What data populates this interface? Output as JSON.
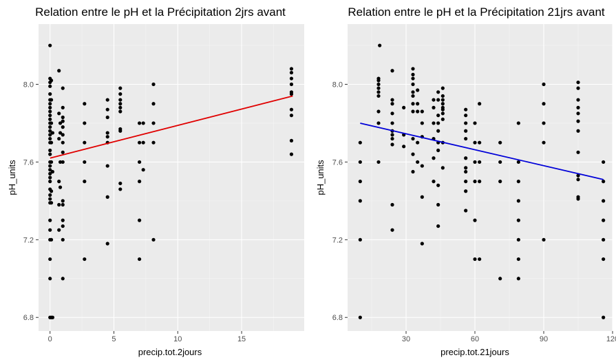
{
  "chart_data": [
    {
      "type": "scatter",
      "title": "Relation entre le pH et la Précipitation 2jrs avant",
      "xlabel": "precip.tot.2jours",
      "ylabel": "pH_units",
      "xlim": [
        -0.9,
        19.9
      ],
      "ylim": [
        6.73,
        8.31
      ],
      "xticks": [
        0,
        5,
        10,
        15
      ],
      "xtick_labels": [
        "0",
        "5",
        "10",
        "15"
      ],
      "yticks": [
        6.8,
        7.2,
        7.6,
        8.0
      ],
      "ytick_labels": [
        "6.8",
        "7.2",
        "7.6",
        "8.0"
      ],
      "grid": true,
      "panel_background": "#ebebeb",
      "point_color": "#000000",
      "trend_line": {
        "color": "#e00000",
        "x": [
          0,
          19
        ],
        "y": [
          7.62,
          7.94
        ]
      },
      "points": [
        [
          0,
          8.2
        ],
        [
          0,
          8.03
        ],
        [
          0,
          8.01
        ],
        [
          0,
          7.99
        ],
        [
          0,
          7.95
        ],
        [
          0,
          7.92
        ],
        [
          0,
          7.9
        ],
        [
          0,
          7.88
        ],
        [
          0,
          7.86
        ],
        [
          0,
          7.84
        ],
        [
          0,
          7.82
        ],
        [
          0,
          7.8
        ],
        [
          0,
          7.78
        ],
        [
          0,
          7.76
        ],
        [
          0,
          7.74
        ],
        [
          0,
          7.72
        ],
        [
          0,
          7.7
        ],
        [
          0,
          7.66
        ],
        [
          0,
          7.64
        ],
        [
          0,
          7.6
        ],
        [
          0,
          7.58
        ],
        [
          0,
          7.56
        ],
        [
          0,
          7.54
        ],
        [
          0,
          7.52
        ],
        [
          0,
          7.5
        ],
        [
          0,
          7.46
        ],
        [
          0,
          7.43
        ],
        [
          0,
          7.41
        ],
        [
          0,
          7.39
        ],
        [
          0,
          7.3
        ],
        [
          0,
          7.25
        ],
        [
          0,
          7.2
        ],
        [
          0,
          7.1
        ],
        [
          0,
          7.0
        ],
        [
          0,
          6.8
        ],
        [
          0.1,
          8.02
        ],
        [
          0.1,
          7.92
        ],
        [
          0.1,
          7.8
        ],
        [
          0.1,
          7.7
        ],
        [
          0.1,
          7.6
        ],
        [
          0.1,
          7.45
        ],
        [
          0.1,
          7.39
        ],
        [
          0.1,
          7.2
        ],
        [
          0.1,
          6.8
        ],
        [
          0.2,
          7.75
        ],
        [
          0.2,
          7.55
        ],
        [
          0.2,
          6.8
        ],
        [
          0.7,
          8.07
        ],
        [
          0.7,
          7.85
        ],
        [
          0.7,
          7.72
        ],
        [
          0.7,
          7.5
        ],
        [
          0.7,
          7.38
        ],
        [
          0.7,
          7.25
        ],
        [
          0.8,
          7.8
        ],
        [
          0.8,
          7.75
        ],
        [
          0.8,
          7.6
        ],
        [
          0.8,
          7.47
        ],
        [
          1.0,
          7.98
        ],
        [
          1.0,
          7.88
        ],
        [
          1.0,
          7.83
        ],
        [
          1.0,
          7.81
        ],
        [
          1.0,
          7.78
        ],
        [
          1.0,
          7.74
        ],
        [
          1.0,
          7.7
        ],
        [
          1.0,
          7.65
        ],
        [
          1.0,
          7.6
        ],
        [
          1.0,
          7.4
        ],
        [
          1.0,
          7.38
        ],
        [
          1.0,
          7.3
        ],
        [
          1.0,
          7.27
        ],
        [
          1.0,
          7.2
        ],
        [
          1.0,
          7.0
        ],
        [
          2.7,
          7.9
        ],
        [
          2.7,
          7.8
        ],
        [
          2.7,
          7.7
        ],
        [
          2.7,
          7.6
        ],
        [
          2.7,
          7.5
        ],
        [
          2.7,
          7.1
        ],
        [
          4.5,
          7.92
        ],
        [
          4.5,
          7.87
        ],
        [
          4.5,
          7.83
        ],
        [
          4.5,
          7.75
        ],
        [
          4.5,
          7.73
        ],
        [
          4.5,
          7.7
        ],
        [
          4.5,
          7.58
        ],
        [
          4.5,
          7.42
        ],
        [
          4.5,
          7.18
        ],
        [
          5.5,
          7.98
        ],
        [
          5.5,
          7.95
        ],
        [
          5.5,
          7.92
        ],
        [
          5.5,
          7.9
        ],
        [
          5.5,
          7.88
        ],
        [
          5.5,
          7.86
        ],
        [
          5.5,
          7.77
        ],
        [
          5.5,
          7.76
        ],
        [
          5.5,
          7.49
        ],
        [
          5.5,
          7.46
        ],
        [
          7.0,
          7.8
        ],
        [
          7.0,
          7.7
        ],
        [
          7.0,
          7.6
        ],
        [
          7.0,
          7.5
        ],
        [
          7.0,
          7.3
        ],
        [
          7.0,
          7.1
        ],
        [
          7.3,
          7.8
        ],
        [
          7.3,
          7.7
        ],
        [
          7.3,
          7.56
        ],
        [
          8.1,
          8.0
        ],
        [
          8.1,
          7.9
        ],
        [
          8.1,
          7.8
        ],
        [
          8.1,
          7.7
        ],
        [
          8.1,
          7.2
        ],
        [
          18.9,
          8.08
        ],
        [
          18.9,
          8.06
        ],
        [
          18.9,
          8.03
        ],
        [
          18.9,
          8.0
        ],
        [
          18.9,
          7.96
        ],
        [
          18.9,
          7.95
        ],
        [
          18.9,
          7.87
        ],
        [
          18.9,
          7.84
        ],
        [
          18.9,
          7.71
        ],
        [
          18.9,
          7.64
        ]
      ]
    },
    {
      "type": "scatter",
      "title": "Relation entre le pH et la Précipitation 21jrs avant",
      "xlabel": "precip.tot.21jours",
      "ylabel": "pH_units",
      "xlim": [
        4.5,
        120
      ],
      "ylim": [
        6.73,
        8.31
      ],
      "xticks": [
        30,
        60,
        90,
        120
      ],
      "xtick_labels": [
        "30",
        "60",
        "90",
        "120"
      ],
      "yticks": [
        6.8,
        7.2,
        7.6,
        8.0
      ],
      "ytick_labels": [
        "6.8",
        "7.2",
        "7.6",
        "8.0"
      ],
      "grid": true,
      "panel_background": "#ebebeb",
      "point_color": "#000000",
      "trend_line": {
        "color": "#0000d8",
        "x": [
          10,
          116
        ],
        "y": [
          7.8,
          7.51
        ]
      },
      "points": [
        [
          10,
          7.7
        ],
        [
          10,
          7.6
        ],
        [
          10,
          7.5
        ],
        [
          10,
          7.4
        ],
        [
          10,
          7.2
        ],
        [
          10,
          6.8
        ],
        [
          18,
          7.6
        ],
        [
          18,
          7.8
        ],
        [
          18,
          7.86
        ],
        [
          18,
          7.94
        ],
        [
          18,
          7.96
        ],
        [
          18,
          7.98
        ],
        [
          18,
          8.0
        ],
        [
          18,
          8.02
        ],
        [
          18,
          8.03
        ],
        [
          18.5,
          8.2
        ],
        [
          24,
          8.07
        ],
        [
          24,
          7.92
        ],
        [
          24,
          7.9
        ],
        [
          24,
          7.85
        ],
        [
          24,
          7.8
        ],
        [
          24,
          7.76
        ],
        [
          24,
          7.74
        ],
        [
          24,
          7.72
        ],
        [
          24,
          7.69
        ],
        [
          24,
          7.38
        ],
        [
          24,
          7.25
        ],
        [
          29,
          7.88
        ],
        [
          29,
          7.74
        ],
        [
          29,
          7.68
        ],
        [
          33,
          8.08
        ],
        [
          33,
          8.05
        ],
        [
          33,
          8.03
        ],
        [
          33,
          8.0
        ],
        [
          33,
          7.96
        ],
        [
          33,
          7.94
        ],
        [
          33,
          7.9
        ],
        [
          33,
          7.86
        ],
        [
          33,
          7.72
        ],
        [
          33,
          7.64
        ],
        [
          33,
          7.55
        ],
        [
          35,
          7.97
        ],
        [
          35,
          7.9
        ],
        [
          35,
          7.86
        ],
        [
          35,
          7.7
        ],
        [
          35,
          7.6
        ],
        [
          37,
          7.86
        ],
        [
          37,
          7.8
        ],
        [
          37,
          7.73
        ],
        [
          37,
          7.58
        ],
        [
          37,
          7.42
        ],
        [
          37,
          7.18
        ],
        [
          42,
          7.92
        ],
        [
          42,
          7.88
        ],
        [
          42,
          7.8
        ],
        [
          42,
          7.72
        ],
        [
          42,
          7.62
        ],
        [
          42,
          7.5
        ],
        [
          44,
          7.96
        ],
        [
          44,
          7.92
        ],
        [
          44,
          7.84
        ],
        [
          44,
          7.8
        ],
        [
          44,
          7.76
        ],
        [
          44,
          7.7
        ],
        [
          44,
          7.66
        ],
        [
          44,
          7.48
        ],
        [
          44,
          7.38
        ],
        [
          44,
          7.27
        ],
        [
          46,
          7.98
        ],
        [
          46,
          7.94
        ],
        [
          46,
          7.92
        ],
        [
          46,
          7.9
        ],
        [
          46,
          7.88
        ],
        [
          46,
          7.87
        ],
        [
          46,
          7.85
        ],
        [
          46,
          7.82
        ],
        [
          46,
          7.7
        ],
        [
          46,
          7.57
        ],
        [
          56,
          7.87
        ],
        [
          56,
          7.84
        ],
        [
          56,
          7.8
        ],
        [
          56,
          7.76
        ],
        [
          56,
          7.72
        ],
        [
          56,
          7.62
        ],
        [
          56,
          7.57
        ],
        [
          56,
          7.55
        ],
        [
          56,
          7.5
        ],
        [
          56,
          7.45
        ],
        [
          56,
          7.35
        ],
        [
          60,
          7.8
        ],
        [
          60,
          7.7
        ],
        [
          60,
          7.6
        ],
        [
          60,
          7.5
        ],
        [
          60,
          7.3
        ],
        [
          60,
          7.1
        ],
        [
          62,
          7.9
        ],
        [
          62,
          7.7
        ],
        [
          62,
          7.6
        ],
        [
          62,
          7.5
        ],
        [
          62,
          7.1
        ],
        [
          71,
          7.7
        ],
        [
          71,
          7.6
        ],
        [
          71,
          7.5
        ],
        [
          71,
          7.0
        ],
        [
          79,
          7.8
        ],
        [
          79,
          7.6
        ],
        [
          79,
          7.5
        ],
        [
          79,
          7.4
        ],
        [
          79,
          7.3
        ],
        [
          79,
          7.2
        ],
        [
          79,
          7.1
        ],
        [
          79,
          7.0
        ],
        [
          90,
          8.0
        ],
        [
          90,
          7.9
        ],
        [
          90,
          7.8
        ],
        [
          90,
          7.7
        ],
        [
          90,
          7.2
        ],
        [
          105,
          8.01
        ],
        [
          105,
          7.98
        ],
        [
          105,
          7.92
        ],
        [
          105,
          7.88
        ],
        [
          105,
          7.85
        ],
        [
          105,
          7.81
        ],
        [
          105,
          7.76
        ],
        [
          105,
          7.65
        ],
        [
          105,
          7.53
        ],
        [
          105,
          7.51
        ],
        [
          105,
          7.42
        ],
        [
          105,
          7.41
        ],
        [
          116,
          7.6
        ],
        [
          116,
          7.5
        ],
        [
          116,
          7.4
        ],
        [
          116,
          7.3
        ],
        [
          116,
          7.2
        ],
        [
          116,
          7.1
        ],
        [
          116,
          6.8
        ]
      ]
    }
  ]
}
